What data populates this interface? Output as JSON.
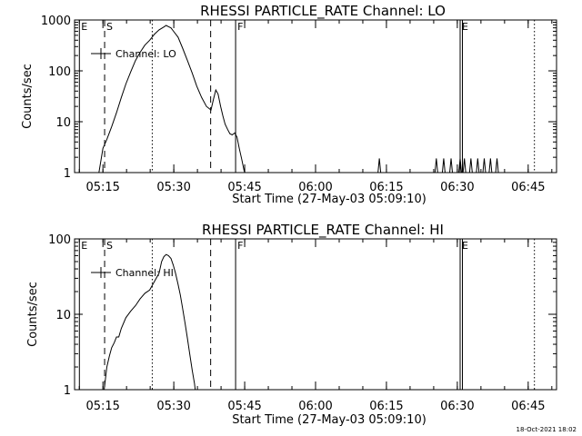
{
  "footer_timestamp": "18-Oct-2021 18:02",
  "chart_data": [
    {
      "type": "line",
      "title": "RHESSI PARTICLE_RATE Channel: LO",
      "xlabel": "Start Time (27-May-03 05:09:10)",
      "ylabel": "Counts/sec",
      "yscale": "log",
      "ylim": [
        1,
        1000
      ],
      "xlim": [
        5.15,
        6.85
      ],
      "y_ticks": [
        {
          "v": 1,
          "label": "1"
        },
        {
          "v": 10,
          "label": "10"
        },
        {
          "v": 100,
          "label": "100"
        },
        {
          "v": 1000,
          "label": "1000"
        }
      ],
      "x_ticks": [
        {
          "t": 5.25,
          "label": "05:15"
        },
        {
          "t": 5.5,
          "label": "05:30"
        },
        {
          "t": 5.75,
          "label": "05:45"
        },
        {
          "t": 6.0,
          "label": "06:00"
        },
        {
          "t": 6.25,
          "label": "06:15"
        },
        {
          "t": 6.5,
          "label": "06:30"
        },
        {
          "t": 6.75,
          "label": "06:45"
        }
      ],
      "legend": "Channel: LO",
      "legend_position": "top-left",
      "markers": [
        {
          "t": 5.167,
          "style": "solid",
          "flag": "E"
        },
        {
          "t": 5.256,
          "style": "dashed",
          "flag": "S"
        },
        {
          "t": 5.424,
          "style": "dotted",
          "flag": ""
        },
        {
          "t": 5.63,
          "style": "dashed",
          "flag": ""
        },
        {
          "t": 5.718,
          "style": "solid",
          "flag": "F"
        },
        {
          "t": 6.51,
          "style": "solid",
          "flag": "E"
        },
        {
          "t": 6.518,
          "style": "solid",
          "flag": ""
        },
        {
          "t": 6.772,
          "style": "dotted",
          "flag": ""
        }
      ],
      "series": [
        {
          "name": "Channel: LO",
          "points": [
            [
              5.233,
              0.8
            ],
            [
              5.25,
              3
            ],
            [
              5.264,
              4.5
            ],
            [
              5.281,
              8
            ],
            [
              5.298,
              15
            ],
            [
              5.315,
              30
            ],
            [
              5.331,
              55
            ],
            [
              5.348,
              95
            ],
            [
              5.365,
              160
            ],
            [
              5.381,
              230
            ],
            [
              5.398,
              320
            ],
            [
              5.415,
              400
            ],
            [
              5.431,
              520
            ],
            [
              5.448,
              640
            ],
            [
              5.465,
              730
            ],
            [
              5.473,
              780
            ],
            [
              5.481,
              740
            ],
            [
              5.49,
              700
            ],
            [
              5.498,
              610
            ],
            [
              5.515,
              460
            ],
            [
              5.531,
              280
            ],
            [
              5.548,
              160
            ],
            [
              5.565,
              90
            ],
            [
              5.581,
              50
            ],
            [
              5.598,
              30
            ],
            [
              5.615,
              20
            ],
            [
              5.631,
              17
            ],
            [
              5.64,
              28
            ],
            [
              5.648,
              42
            ],
            [
              5.656,
              35
            ],
            [
              5.665,
              20
            ],
            [
              5.673,
              13
            ],
            [
              5.681,
              9
            ],
            [
              5.69,
              7
            ],
            [
              5.698,
              5.8
            ],
            [
              5.706,
              5.5
            ],
            [
              5.715,
              6
            ],
            [
              5.723,
              5
            ],
            [
              5.731,
              3
            ],
            [
              5.74,
              1.8
            ],
            [
              5.748,
              1.1
            ],
            [
              5.756,
              0.8
            ]
          ],
          "spikes": [
            6.225,
            6.426,
            6.452,
            6.478,
            6.51,
            6.525,
            6.548,
            6.572,
            6.595,
            6.617,
            6.64
          ]
        }
      ]
    },
    {
      "type": "line",
      "title": "RHESSI PARTICLE_RATE Channel: HI",
      "xlabel": "Start Time (27-May-03 05:09:10)",
      "ylabel": "Counts/sec",
      "yscale": "log",
      "ylim": [
        1,
        100
      ],
      "xlim": [
        5.15,
        6.85
      ],
      "y_ticks": [
        {
          "v": 1,
          "label": "1"
        },
        {
          "v": 10,
          "label": "10"
        },
        {
          "v": 100,
          "label": "100"
        }
      ],
      "x_ticks": [
        {
          "t": 5.25,
          "label": "05:15"
        },
        {
          "t": 5.5,
          "label": "05:30"
        },
        {
          "t": 5.75,
          "label": "05:45"
        },
        {
          "t": 6.0,
          "label": "06:00"
        },
        {
          "t": 6.25,
          "label": "06:15"
        },
        {
          "t": 6.5,
          "label": "06:30"
        },
        {
          "t": 6.75,
          "label": "06:45"
        }
      ],
      "legend": "Channel: HI",
      "legend_position": "top-left",
      "markers": [
        {
          "t": 5.167,
          "style": "solid",
          "flag": "E"
        },
        {
          "t": 5.256,
          "style": "dashed",
          "flag": "S"
        },
        {
          "t": 5.424,
          "style": "dotted",
          "flag": ""
        },
        {
          "t": 5.63,
          "style": "dashed",
          "flag": ""
        },
        {
          "t": 5.718,
          "style": "solid",
          "flag": "F"
        },
        {
          "t": 6.51,
          "style": "solid",
          "flag": "E"
        },
        {
          "t": 6.518,
          "style": "solid",
          "flag": ""
        },
        {
          "t": 6.772,
          "style": "dotted",
          "flag": ""
        }
      ],
      "series": [
        {
          "name": "Channel: HI",
          "points": [
            [
              5.253,
              0.9
            ],
            [
              5.264,
              2
            ],
            [
              5.273,
              2.8
            ],
            [
              5.281,
              3.6
            ],
            [
              5.29,
              4.2
            ],
            [
              5.298,
              5
            ],
            [
              5.306,
              5
            ],
            [
              5.315,
              6.5
            ],
            [
              5.331,
              9
            ],
            [
              5.348,
              11
            ],
            [
              5.365,
              13
            ],
            [
              5.381,
              16
            ],
            [
              5.398,
              19
            ],
            [
              5.415,
              21
            ],
            [
              5.431,
              27
            ],
            [
              5.448,
              35
            ],
            [
              5.457,
              50
            ],
            [
              5.465,
              58
            ],
            [
              5.473,
              62
            ],
            [
              5.481,
              60
            ],
            [
              5.49,
              55
            ],
            [
              5.498,
              45
            ],
            [
              5.506,
              35
            ],
            [
              5.515,
              25
            ],
            [
              5.523,
              18
            ],
            [
              5.531,
              12
            ],
            [
              5.54,
              7.5
            ],
            [
              5.548,
              4.8
            ],
            [
              5.556,
              3
            ],
            [
              5.565,
              1.8
            ],
            [
              5.573,
              1.2
            ],
            [
              5.577,
              0.9
            ]
          ],
          "spikes": []
        }
      ]
    }
  ]
}
